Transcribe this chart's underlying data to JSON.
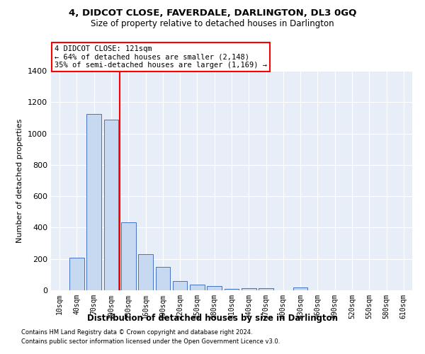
{
  "title": "4, DIDCOT CLOSE, FAVERDALE, DARLINGTON, DL3 0GQ",
  "subtitle": "Size of property relative to detached houses in Darlington",
  "xlabel": "Distribution of detached houses by size in Darlington",
  "ylabel": "Number of detached properties",
  "bar_labels": [
    "10sqm",
    "40sqm",
    "70sqm",
    "100sqm",
    "130sqm",
    "160sqm",
    "190sqm",
    "220sqm",
    "250sqm",
    "280sqm",
    "310sqm",
    "340sqm",
    "370sqm",
    "400sqm",
    "430sqm",
    "460sqm",
    "490sqm",
    "520sqm",
    "550sqm",
    "580sqm",
    "610sqm"
  ],
  "bar_values": [
    0,
    210,
    1125,
    1090,
    435,
    232,
    148,
    58,
    38,
    25,
    10,
    15,
    15,
    0,
    20,
    0,
    0,
    0,
    0,
    0,
    0
  ],
  "bar_color": "#c6d9f0",
  "bar_edge_color": "#4472c4",
  "annotation_line1": "4 DIDCOT CLOSE: 121sqm",
  "annotation_line2": "← 64% of detached houses are smaller (2,148)",
  "annotation_line3": "35% of semi-detached houses are larger (1,169) →",
  "annotation_box_color": "white",
  "annotation_box_edge_color": "red",
  "vline_color": "red",
  "vline_x_index": 3.5,
  "ylim": [
    0,
    1400
  ],
  "yticks": [
    0,
    200,
    400,
    600,
    800,
    1000,
    1200,
    1400
  ],
  "background_color": "#e8eef8",
  "grid_color": "white",
  "footer_line1": "Contains HM Land Registry data © Crown copyright and database right 2024.",
  "footer_line2": "Contains public sector information licensed under the Open Government Licence v3.0."
}
